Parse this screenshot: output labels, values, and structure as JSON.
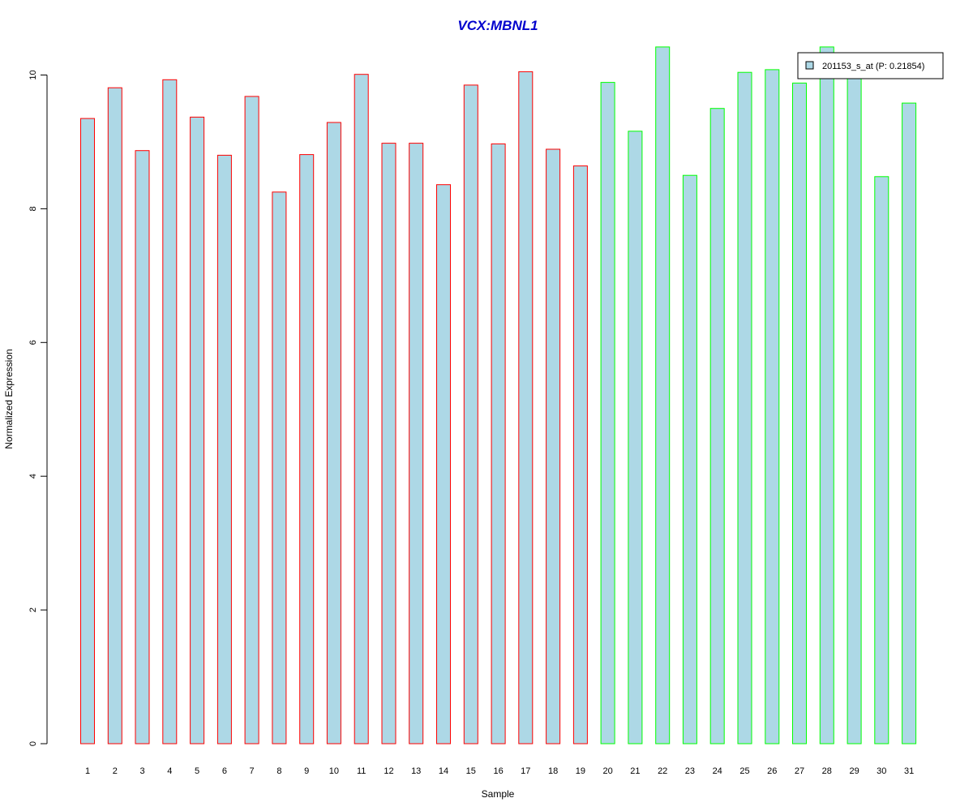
{
  "chart_data": {
    "type": "bar",
    "title": "VCX:MBNL1",
    "xlabel": "Sample",
    "ylabel": "Normalized Expression",
    "categories": [
      "1",
      "2",
      "3",
      "4",
      "5",
      "6",
      "7",
      "8",
      "9",
      "10",
      "11",
      "12",
      "13",
      "14",
      "15",
      "16",
      "17",
      "18",
      "19",
      "20",
      "21",
      "22",
      "23",
      "24",
      "25",
      "26",
      "27",
      "28",
      "29",
      "30",
      "31"
    ],
    "y_ticks": [
      "0",
      "2",
      "4",
      "6",
      "8",
      "10"
    ],
    "ylim": [
      0,
      10.4
    ],
    "grid": false,
    "legend": {
      "placement": "top-right",
      "entries": [
        {
          "label": "201153_s_at (P: 0.21854)",
          "color": "#add8e6"
        }
      ]
    },
    "series": [
      {
        "name": "201153_s_at (P: 0.21854)",
        "values": [
          9.35,
          9.81,
          8.87,
          9.93,
          9.37,
          8.8,
          9.68,
          8.25,
          8.81,
          9.29,
          10.01,
          8.98,
          8.98,
          8.36,
          9.85,
          8.97,
          10.05,
          8.89,
          8.64,
          9.89,
          9.16,
          10.42,
          8.5,
          9.5,
          10.04,
          10.08,
          9.88,
          10.42,
          10.08,
          8.48,
          9.58
        ]
      }
    ],
    "groups": [
      {
        "samples": "1-19",
        "color": "#ff0000"
      },
      {
        "samples": "20-31",
        "color": "#00ff00"
      }
    ],
    "colors": {
      "title": "#0000cd",
      "bar_fill": "#add8e6"
    }
  }
}
